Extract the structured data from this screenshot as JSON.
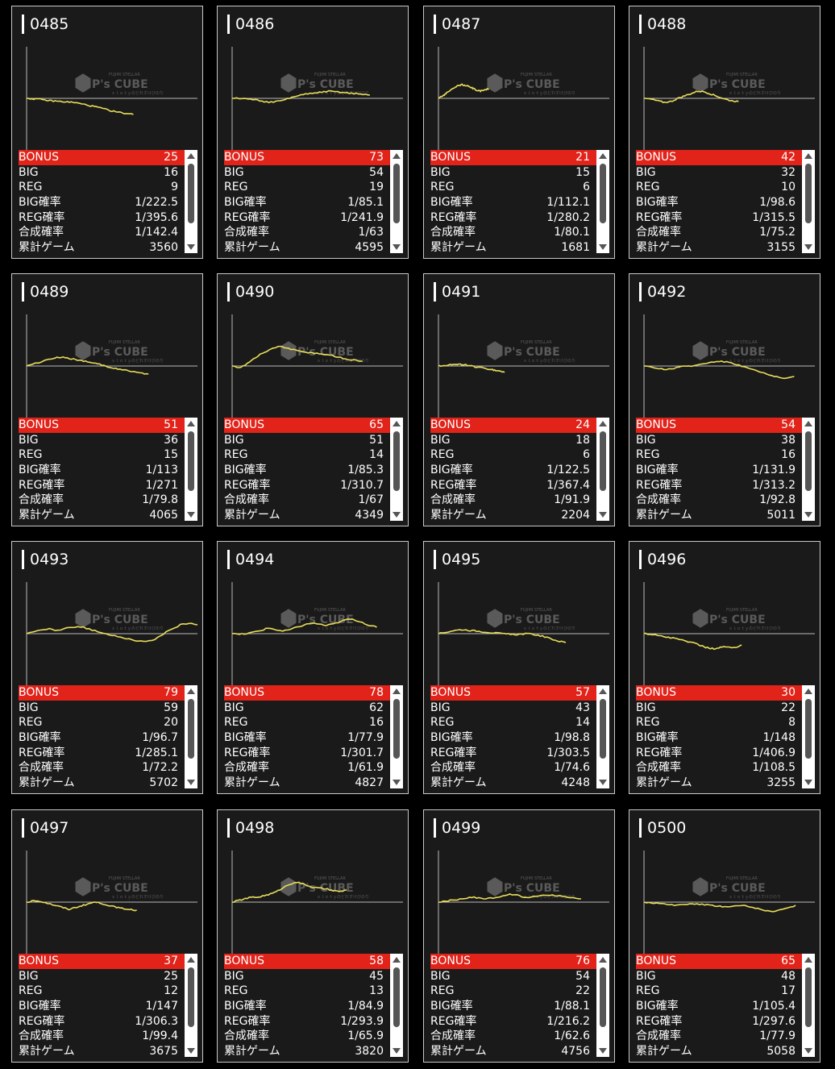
{
  "labels": [
    "BONUS",
    "BIG",
    "REG",
    "BIG確率",
    "REG確率",
    "合成確率",
    "累計ゲーム"
  ],
  "watermark": {
    "brand": "P's CUBE",
    "line1": "FUJIMI STELLAR",
    "line2": "ｓｌｏｔｙのどれすけびのり"
  },
  "colors": {
    "bonus_row": "#e2231a",
    "graph_line": "#e8dd5a",
    "card_bg": "#1a1a1a"
  },
  "machines": [
    {
      "id": "0485",
      "bonus": "25",
      "big": "16",
      "reg": "9",
      "big_rate": "1/222.5",
      "reg_rate": "1/395.6",
      "total_rate": "1/142.4",
      "games": "3560",
      "trend": [
        0,
        -1,
        -3,
        -4,
        -5,
        -8,
        -11,
        -15,
        -18,
        -20
      ]
    },
    {
      "id": "0486",
      "bonus": "73",
      "big": "54",
      "reg": "19",
      "big_rate": "1/85.1",
      "reg_rate": "1/241.9",
      "total_rate": "1/63",
      "games": "4595",
      "trend": [
        0,
        0,
        -1,
        -2,
        -4,
        -5,
        -3,
        0,
        3,
        5,
        6,
        8,
        9,
        8,
        7,
        6,
        5,
        4
      ]
    },
    {
      "id": "0487",
      "bonus": "21",
      "big": "15",
      "reg": "6",
      "big_rate": "1/112.1",
      "reg_rate": "1/280.2",
      "total_rate": "1/80.1",
      "games": "1681",
      "trend": [
        0,
        3,
        8,
        12,
        15,
        17,
        16,
        14,
        11,
        9,
        10,
        12
      ]
    },
    {
      "id": "0488",
      "bonus": "42",
      "big": "32",
      "reg": "10",
      "big_rate": "1/98.6",
      "reg_rate": "1/315.5",
      "total_rate": "1/75.2",
      "games": "3155",
      "trend": [
        0,
        -1,
        -3,
        -5,
        -4,
        0,
        3,
        6,
        9,
        8,
        5,
        2,
        -1,
        -3,
        -4
      ]
    },
    {
      "id": "0489",
      "bonus": "51",
      "big": "36",
      "reg": "15",
      "big_rate": "1/113",
      "reg_rate": "1/271",
      "total_rate": "1/79.8",
      "games": "4065",
      "trend": [
        0,
        3,
        6,
        9,
        11,
        10,
        8,
        6,
        4,
        2,
        -1,
        -3,
        -5,
        -7,
        -9,
        -10
      ]
    },
    {
      "id": "0490",
      "bonus": "65",
      "big": "51",
      "reg": "14",
      "big_rate": "1/85.3",
      "reg_rate": "1/310.7",
      "total_rate": "1/67",
      "games": "4349",
      "trend": [
        0,
        -2,
        2,
        8,
        14,
        18,
        22,
        25,
        22,
        20,
        18,
        17,
        16,
        15,
        14,
        12,
        10,
        8,
        7,
        6
      ]
    },
    {
      "id": "0491",
      "bonus": "24",
      "big": "18",
      "reg": "6",
      "big_rate": "1/122.5",
      "reg_rate": "1/367.4",
      "total_rate": "1/91.9",
      "games": "2204",
      "trend": [
        0,
        1,
        2,
        2,
        1,
        -1,
        -2,
        -4,
        -6,
        -8
      ]
    },
    {
      "id": "0492",
      "bonus": "54",
      "big": "38",
      "reg": "16",
      "big_rate": "1/131.9",
      "reg_rate": "1/313.2",
      "total_rate": "1/92.8",
      "games": "5011",
      "trend": [
        0,
        -2,
        -3,
        -4,
        -3,
        -1,
        0,
        1,
        3,
        5,
        6,
        5,
        3,
        0,
        -3,
        -6,
        -9,
        -12,
        -14,
        -15,
        -13
      ]
    },
    {
      "id": "0493",
      "bonus": "79",
      "big": "59",
      "reg": "20",
      "big_rate": "1/96.7",
      "reg_rate": "1/285.1",
      "total_rate": "1/72.2",
      "games": "5702",
      "trend": [
        0,
        2,
        5,
        6,
        3,
        6,
        8,
        9,
        7,
        4,
        1,
        -1,
        -3,
        -5,
        -7,
        -9,
        -10,
        -8,
        -3,
        3,
        8,
        12,
        13,
        11
      ]
    },
    {
      "id": "0494",
      "bonus": "78",
      "big": "62",
      "reg": "16",
      "big_rate": "1/77.9",
      "reg_rate": "1/301.7",
      "total_rate": "1/61.9",
      "games": "4827",
      "trend": [
        0,
        -1,
        0,
        2,
        4,
        7,
        5,
        3,
        5,
        8,
        11,
        13,
        12,
        10,
        12,
        15,
        18,
        17,
        14,
        10,
        8
      ]
    },
    {
      "id": "0495",
      "bonus": "57",
      "big": "43",
      "reg": "14",
      "big_rate": "1/98.8",
      "reg_rate": "1/303.5",
      "total_rate": "1/74.6",
      "games": "4248",
      "trend": [
        0,
        2,
        4,
        5,
        4,
        3,
        2,
        1,
        0,
        -1,
        -1,
        0,
        -1,
        -3,
        -6,
        -9,
        -11
      ]
    },
    {
      "id": "0496",
      "bonus": "30",
      "big": "22",
      "reg": "8",
      "big_rate": "1/148",
      "reg_rate": "1/406.9",
      "total_rate": "1/108.5",
      "games": "3255",
      "trend": [
        0,
        -1,
        -3,
        -5,
        -7,
        -10,
        -13,
        -17,
        -19,
        -16,
        -18,
        -14
      ]
    },
    {
      "id": "0497",
      "bonus": "37",
      "big": "25",
      "reg": "12",
      "big_rate": "1/147",
      "reg_rate": "1/306.3",
      "total_rate": "1/99.4",
      "games": "3675",
      "trend": [
        0,
        2,
        0,
        -3,
        -6,
        -9,
        -6,
        -3,
        0,
        -2,
        -5,
        -7,
        -9,
        -10
      ]
    },
    {
      "id": "0498",
      "bonus": "58",
      "big": "45",
      "reg": "13",
      "big_rate": "1/84.9",
      "reg_rate": "1/293.9",
      "total_rate": "1/65.9",
      "games": "3820",
      "trend": [
        0,
        2,
        4,
        6,
        6,
        8,
        10,
        13,
        18,
        22,
        25,
        23,
        20,
        18,
        17,
        16,
        14,
        13,
        15
      ]
    },
    {
      "id": "0499",
      "bonus": "76",
      "big": "54",
      "reg": "22",
      "big_rate": "1/88.1",
      "reg_rate": "1/216.2",
      "total_rate": "1/62.6",
      "games": "4756",
      "trend": [
        0,
        1,
        2,
        3,
        4,
        5,
        6,
        5,
        4,
        5,
        6,
        8,
        10,
        9,
        7,
        6,
        7,
        8,
        9,
        9,
        8,
        7,
        6,
        5,
        4
      ]
    },
    {
      "id": "0500",
      "bonus": "65",
      "big": "48",
      "reg": "17",
      "big_rate": "1/105.4",
      "reg_rate": "1/297.6",
      "total_rate": "1/77.9",
      "games": "5058",
      "trend": [
        0,
        -1,
        -2,
        -3,
        -4,
        -3,
        -2,
        -2,
        -3,
        -4,
        -5,
        -6,
        -5,
        -4,
        -6,
        -8,
        -10,
        -12,
        -10,
        -7,
        -4
      ]
    }
  ]
}
